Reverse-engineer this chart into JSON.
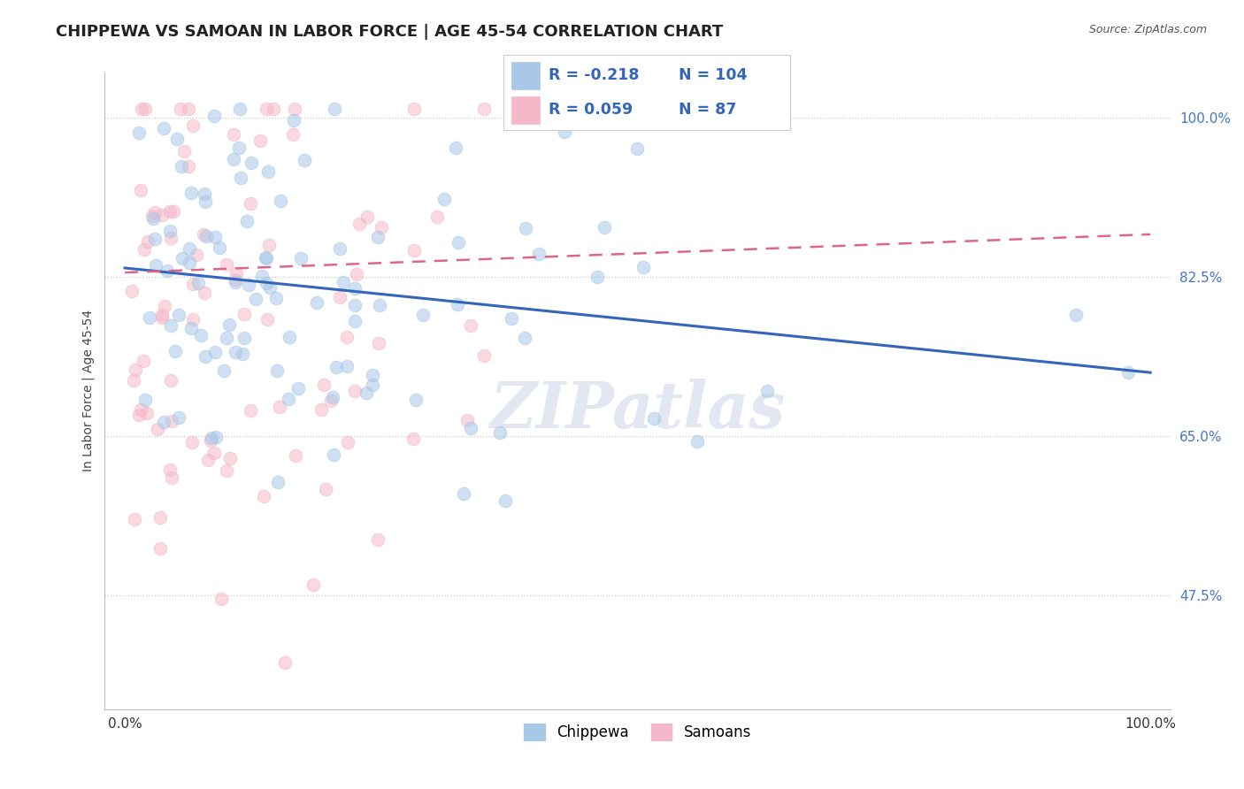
{
  "title": "CHIPPEWA VS SAMOAN IN LABOR FORCE | AGE 45-54 CORRELATION CHART",
  "source": "Source: ZipAtlas.com",
  "ylabel": "In Labor Force | Age 45-54",
  "watermark": "ZIPatlas",
  "legend_entries": [
    {
      "label": "Chippewa",
      "color": "#a8c8e8",
      "border_color": "#7aadd4",
      "R": -0.218,
      "N": 104,
      "line_color": "#3366bb"
    },
    {
      "label": "Samoans",
      "color": "#f5b8c8",
      "border_color": "#e080a0",
      "R": 0.059,
      "N": 87,
      "line_color": "#dd6688"
    }
  ],
  "yticks": [
    0.475,
    0.65,
    0.825,
    1.0
  ],
  "ytick_labels": [
    "47.5%",
    "65.0%",
    "82.5%",
    "100.0%"
  ],
  "xtick_labels": [
    "0.0%",
    "100.0%"
  ],
  "ylim": [
    0.35,
    1.05
  ],
  "xlim": [
    -0.02,
    1.02
  ],
  "dot_size": 110,
  "dot_alpha": 0.55,
  "background_color": "#ffffff",
  "grid_color": "#cccccc",
  "title_fontsize": 13,
  "axis_fontsize": 11,
  "tick_color": "#4477cc",
  "watermark_color": "#d0d8e8",
  "watermark_alpha": 0.6
}
